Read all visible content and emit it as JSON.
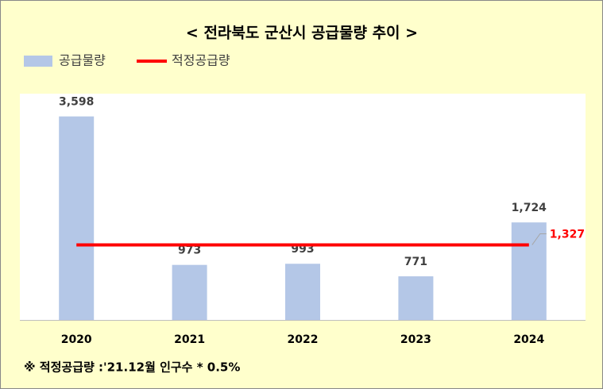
{
  "chart_data": {
    "type": "bar-line",
    "title": "< 전라북도 군산시 공급물량 추이 >",
    "categories": [
      "2020",
      "2021",
      "2022",
      "2023",
      "2024"
    ],
    "series": [
      {
        "name": "공급물량",
        "type": "bar",
        "color": "#b4c7e7",
        "values": [
          3598,
          973,
          993,
          771,
          1724
        ],
        "value_labels": [
          "3,598",
          "973",
          "993",
          "771",
          "1,724"
        ]
      },
      {
        "name": "적정공급량",
        "type": "line",
        "color": "#ff0000",
        "values": [
          1327,
          1327,
          1327,
          1327,
          1327
        ],
        "value_labels": [
          null,
          null,
          null,
          null,
          "1,327"
        ]
      }
    ],
    "ylim": [
      0,
      4000
    ],
    "note": "※ 적정공급량 :'21.12월 인구수 * 0.5%"
  }
}
